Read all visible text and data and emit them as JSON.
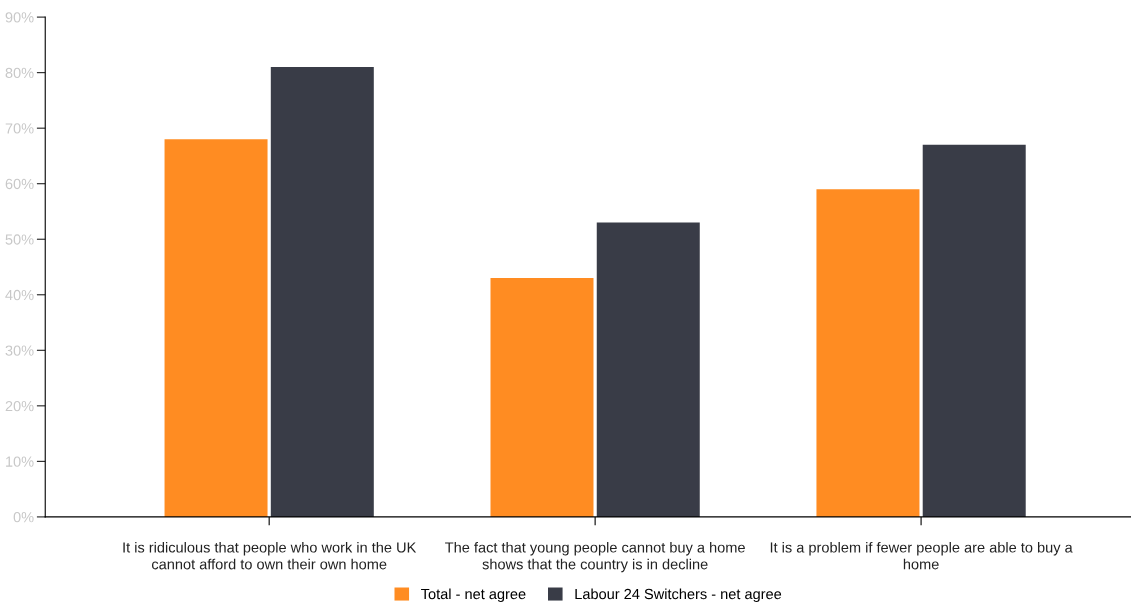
{
  "chart_data": {
    "type": "bar",
    "categories": [
      "It is ridiculous that people who work in the UK cannot afford to own their own home",
      "The fact that young people cannot buy a home shows that the country is in decline",
      "It is a problem if fewer people are able to buy a home"
    ],
    "series": [
      {
        "name": "Total - net agree",
        "color": "#ff8c22",
        "values": [
          68,
          43,
          59
        ]
      },
      {
        "name": "Labour 24 Switchers - net agree",
        "color": "#393c47",
        "values": [
          81,
          53,
          67
        ]
      }
    ],
    "ylim": [
      0,
      90
    ],
    "yticks": [
      {
        "value": 0,
        "label": "0%"
      },
      {
        "value": 10,
        "label": "10%"
      },
      {
        "value": 20,
        "label": "20%"
      },
      {
        "value": 30,
        "label": "30%"
      },
      {
        "value": 40,
        "label": "40%"
      },
      {
        "value": 50,
        "label": "50%"
      },
      {
        "value": 60,
        "label": "60%"
      },
      {
        "value": 70,
        "label": "70%"
      },
      {
        "value": 80,
        "label": "80%"
      },
      {
        "value": 90,
        "label": "90%"
      }
    ],
    "grid": false,
    "legend": "bottom"
  }
}
